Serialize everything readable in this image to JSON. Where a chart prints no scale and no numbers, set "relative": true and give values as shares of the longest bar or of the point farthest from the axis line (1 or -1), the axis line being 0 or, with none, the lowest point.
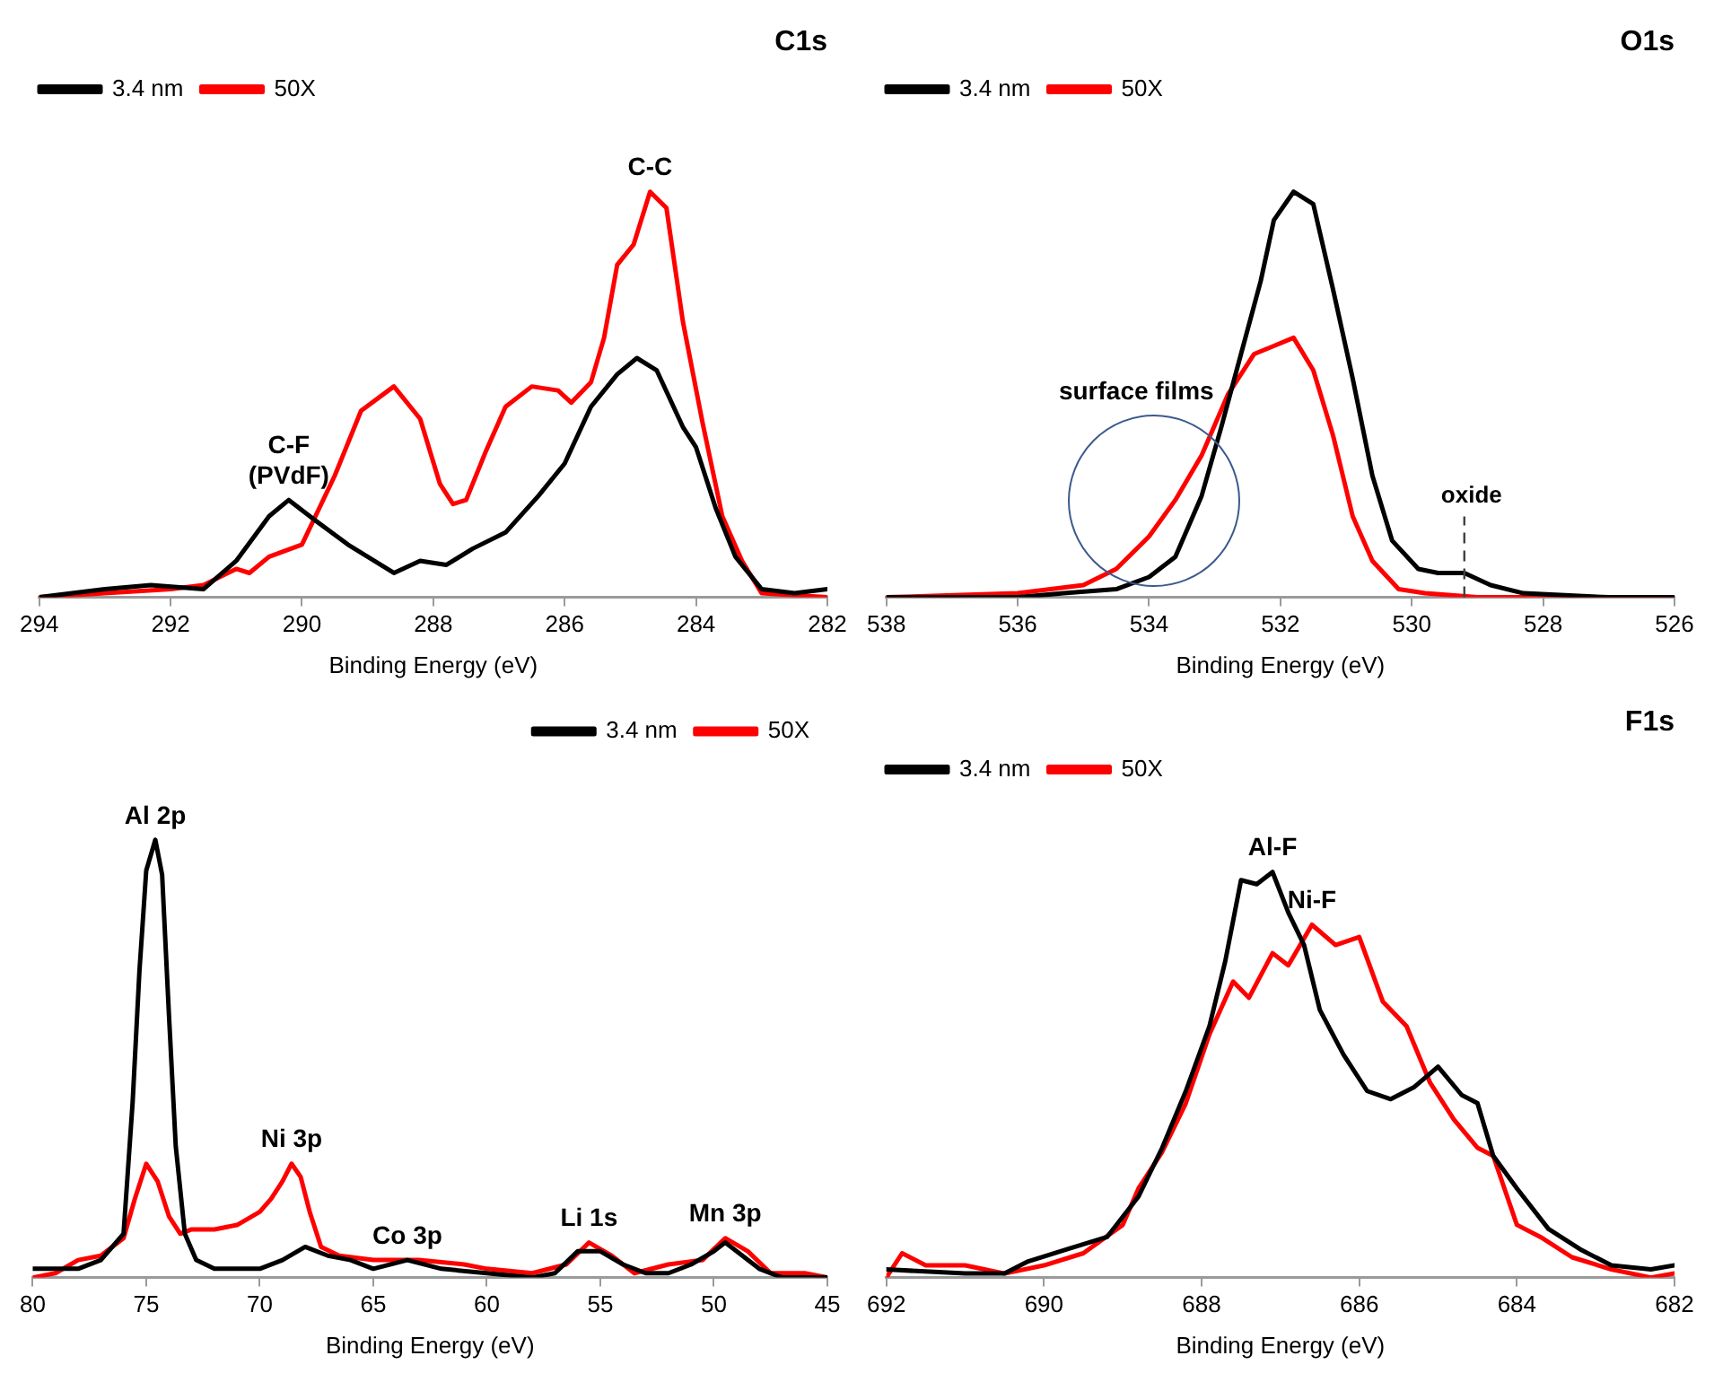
{
  "chart_data": [
    {
      "type": "line",
      "title": "C1s",
      "xlabel": "Binding Energy (eV)",
      "xlim": [
        294,
        282
      ],
      "xticks": [
        294,
        292,
        290,
        288,
        286,
        284,
        282
      ],
      "relative": true,
      "legend": "top left",
      "grid": false,
      "marker": "none",
      "line_style": "solid",
      "annotations": [
        {
          "text": "C-C",
          "x": 284.7,
          "y": 1.0
        },
        {
          "text": "C-F\n(PVdF)",
          "x": 290.2,
          "y": 0.24
        }
      ],
      "series": [
        {
          "name": "3.4 nm",
          "color": "#000000",
          "x": [
            294,
            293,
            292.3,
            291.5,
            291,
            290.5,
            290.2,
            289.8,
            289.3,
            288.9,
            288.6,
            288.2,
            287.8,
            287.4,
            286.9,
            286.4,
            286,
            285.6,
            285.2,
            284.9,
            284.6,
            284.2,
            284,
            283.7,
            283.4,
            283,
            282.5,
            282
          ],
          "values": [
            0,
            0.02,
            0.03,
            0.02,
            0.09,
            0.2,
            0.24,
            0.19,
            0.13,
            0.09,
            0.06,
            0.09,
            0.08,
            0.12,
            0.16,
            0.25,
            0.33,
            0.47,
            0.55,
            0.59,
            0.56,
            0.42,
            0.37,
            0.22,
            0.1,
            0.02,
            0.01,
            0.02
          ]
        },
        {
          "name": "50X",
          "color": "#ff0000",
          "x": [
            294,
            293,
            292,
            291.5,
            291,
            290.8,
            290.5,
            290,
            289.5,
            289.1,
            288.6,
            288.2,
            287.9,
            287.7,
            287.5,
            287.2,
            286.9,
            286.5,
            286.1,
            285.9,
            285.6,
            285.4,
            285.2,
            284.95,
            284.7,
            284.45,
            284.2,
            283.9,
            283.6,
            283.3,
            283,
            282
          ],
          "values": [
            0,
            0.01,
            0.02,
            0.03,
            0.07,
            0.06,
            0.1,
            0.13,
            0.3,
            0.46,
            0.52,
            0.44,
            0.28,
            0.23,
            0.24,
            0.36,
            0.47,
            0.52,
            0.51,
            0.48,
            0.53,
            0.64,
            0.82,
            0.87,
            1.0,
            0.96,
            0.68,
            0.43,
            0.2,
            0.09,
            0.01,
            0
          ]
        }
      ]
    },
    {
      "type": "line",
      "title": "O1s",
      "xlabel": "Binding Energy (eV)",
      "xlim": [
        538,
        526
      ],
      "xticks": [
        538,
        536,
        534,
        532,
        530,
        528,
        526
      ],
      "relative": true,
      "legend": "top left",
      "grid": false,
      "marker": "none",
      "line_style": "solid",
      "annotations": [
        "surface films"
      ],
      "ref_lines": [
        {
          "axis": "x",
          "value": 529.2,
          "label": "oxide",
          "color": "#404040",
          "line_style": "dashed"
        }
      ],
      "series": [
        {
          "name": "3.4 nm",
          "color": "#000000",
          "x": [
            538,
            536,
            535.3,
            534.5,
            534,
            533.6,
            533.2,
            532.9,
            532.6,
            532.3,
            532.1,
            531.8,
            531.5,
            531.2,
            530.9,
            530.6,
            530.3,
            529.9,
            529.6,
            529.2,
            528.8,
            528.3,
            527,
            526
          ],
          "values": [
            0,
            0,
            0.01,
            0.02,
            0.05,
            0.1,
            0.25,
            0.42,
            0.6,
            0.78,
            0.93,
            1.0,
            0.97,
            0.76,
            0.54,
            0.3,
            0.14,
            0.07,
            0.06,
            0.06,
            0.03,
            0.01,
            0,
            0
          ]
        },
        {
          "name": "50X",
          "color": "#ff0000",
          "x": [
            538,
            536,
            535,
            534.5,
            534,
            533.6,
            533.2,
            532.8,
            532.4,
            532.1,
            531.8,
            531.5,
            531.2,
            530.9,
            530.6,
            530.2,
            529.8,
            529,
            526
          ],
          "values": [
            0,
            0.01,
            0.03,
            0.07,
            0.15,
            0.24,
            0.35,
            0.5,
            0.6,
            0.62,
            0.64,
            0.56,
            0.4,
            0.2,
            0.09,
            0.02,
            0.01,
            0,
            0
          ]
        }
      ]
    },
    {
      "type": "line",
      "xlabel": "Binding Energy (eV)",
      "xlim": [
        80,
        45
      ],
      "xticks": [
        80,
        75,
        70,
        65,
        60,
        55,
        50,
        45
      ],
      "relative": true,
      "legend": "top right",
      "grid": false,
      "marker": "none",
      "line_style": "solid",
      "annotations": [
        {
          "text": "Al 2p",
          "x": 74.6,
          "y": 1.0
        },
        {
          "text": "Ni 3p",
          "x": 68.6,
          "y": 0.26
        },
        {
          "text": "Co 3p",
          "x": 63.5,
          "y": 0.04
        },
        {
          "text": "Li 1s",
          "x": 55.5,
          "y": 0.08
        },
        {
          "text": "Mn 3p",
          "x": 49.5,
          "y": 0.09
        }
      ],
      "series": [
        {
          "name": "3.4 nm",
          "color": "#000000",
          "x": [
            80,
            78,
            77,
            76,
            75.6,
            75.3,
            75,
            74.6,
            74.3,
            74,
            73.7,
            73.3,
            72.8,
            72,
            70,
            69,
            68,
            67,
            66,
            65,
            63.5,
            62,
            60,
            58,
            57,
            56,
            55,
            54,
            53,
            52,
            51,
            50,
            49.5,
            49,
            48,
            47,
            45
          ],
          "values": [
            0.02,
            0.02,
            0.04,
            0.1,
            0.4,
            0.7,
            0.93,
            1.0,
            0.92,
            0.6,
            0.3,
            0.1,
            0.04,
            0.02,
            0.02,
            0.04,
            0.07,
            0.05,
            0.04,
            0.02,
            0.04,
            0.02,
            0.01,
            0,
            0.01,
            0.06,
            0.06,
            0.03,
            0.01,
            0.01,
            0.03,
            0.06,
            0.08,
            0.06,
            0.02,
            0,
            0
          ]
        },
        {
          "name": "50X",
          "color": "#ff0000",
          "x": [
            80,
            79,
            78,
            77,
            76,
            75.5,
            75,
            74.5,
            74,
            73.5,
            73,
            72,
            71,
            70,
            69.5,
            69,
            68.6,
            68.2,
            67.8,
            67.3,
            66.5,
            65,
            63,
            61,
            60,
            58,
            56.5,
            55.5,
            54.5,
            53.5,
            52,
            50.5,
            49.5,
            48.5,
            47.5,
            46,
            45
          ],
          "values": [
            0,
            0.01,
            0.04,
            0.05,
            0.09,
            0.18,
            0.26,
            0.22,
            0.14,
            0.1,
            0.11,
            0.11,
            0.12,
            0.15,
            0.18,
            0.22,
            0.26,
            0.23,
            0.15,
            0.07,
            0.05,
            0.04,
            0.04,
            0.03,
            0.02,
            0.01,
            0.03,
            0.08,
            0.05,
            0.01,
            0.03,
            0.04,
            0.09,
            0.06,
            0.01,
            0.01,
            0
          ]
        }
      ]
    },
    {
      "type": "line",
      "title": "F1s",
      "xlabel": "Binding Energy (eV)",
      "xlim": [
        692,
        682
      ],
      "xticks": [
        692,
        690,
        688,
        686,
        684,
        682
      ],
      "relative": true,
      "legend": "top left",
      "grid": false,
      "marker": "none",
      "line_style": "solid",
      "annotations": [
        {
          "text": "Al-F",
          "x": 687.1,
          "y": 1.0
        },
        {
          "text": "Ni-F",
          "x": 686.6,
          "y": 0.87
        }
      ],
      "series": [
        {
          "name": "3.4 nm",
          "color": "#000000",
          "x": [
            692,
            691,
            690.5,
            690.2,
            689.7,
            689.2,
            688.8,
            688.5,
            688.2,
            687.9,
            687.7,
            687.5,
            687.3,
            687.1,
            686.9,
            686.7,
            686.5,
            686.2,
            685.9,
            685.6,
            685.3,
            685,
            684.7,
            684.5,
            684.3,
            684,
            683.6,
            683.2,
            682.8,
            682.3,
            682
          ],
          "values": [
            0.02,
            0.01,
            0.01,
            0.04,
            0.07,
            0.1,
            0.2,
            0.32,
            0.46,
            0.62,
            0.78,
            0.98,
            0.97,
            1.0,
            0.9,
            0.82,
            0.66,
            0.55,
            0.46,
            0.44,
            0.47,
            0.52,
            0.45,
            0.43,
            0.3,
            0.22,
            0.12,
            0.07,
            0.03,
            0.02,
            0.03
          ]
        },
        {
          "name": "50X",
          "color": "#ff0000",
          "x": [
            692,
            691.8,
            691.5,
            691,
            690.5,
            690,
            689.5,
            689,
            688.8,
            688.5,
            688.2,
            687.9,
            687.6,
            687.4,
            687.1,
            686.9,
            686.6,
            686.3,
            686,
            685.7,
            685.4,
            685.1,
            684.8,
            684.5,
            684.3,
            684,
            683.7,
            683.3,
            682.8,
            682.3,
            682
          ],
          "values": [
            0,
            0.06,
            0.03,
            0.03,
            0.01,
            0.03,
            0.06,
            0.13,
            0.22,
            0.31,
            0.43,
            0.6,
            0.73,
            0.69,
            0.8,
            0.77,
            0.87,
            0.82,
            0.84,
            0.68,
            0.62,
            0.48,
            0.39,
            0.32,
            0.3,
            0.13,
            0.1,
            0.05,
            0.02,
            0,
            0.01
          ]
        }
      ]
    }
  ]
}
